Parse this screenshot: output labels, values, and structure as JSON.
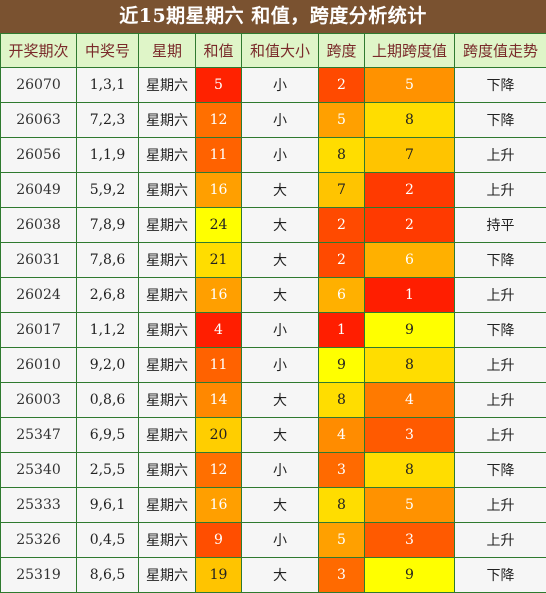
{
  "title": "近15期星期六 和值，跨度分析统计",
  "headers": [
    "开奖期次",
    "中奖号",
    "星期",
    "和值",
    "和值大小",
    "跨度",
    "上期跨度值",
    "跨度值走势"
  ],
  "colors": {
    "title_bg": "#7a5230",
    "header_bg": "#dff5c8",
    "border": "#2f7a2f",
    "heat_scale": {
      "1": "#ff2d00",
      "2": "#ff4a00",
      "3": "#ff6a00",
      "4": "#ff8c00",
      "5": "#ff9f00",
      "6": "#ffb000",
      "7": "#ffc400",
      "8": "#ffdd00",
      "9": "#ffff00"
    }
  },
  "rows": [
    {
      "issue": "26070",
      "numbers": "1,3,1",
      "weekday": "星期六",
      "sum": "5",
      "size": "小",
      "span": "2",
      "prev_span": "5",
      "trend": "下降",
      "sum_color": "#ff2200",
      "span_color": "#ff4a00",
      "prev_color": "#ff9200"
    },
    {
      "issue": "26063",
      "numbers": "7,2,3",
      "weekday": "星期六",
      "sum": "12",
      "size": "小",
      "span": "5",
      "prev_span": "8",
      "trend": "下降",
      "sum_color": "#ff6f00",
      "span_color": "#ffa000",
      "prev_color": "#ffdd00"
    },
    {
      "issue": "26056",
      "numbers": "1,1,9",
      "weekday": "星期六",
      "sum": "11",
      "size": "小",
      "span": "8",
      "prev_span": "7",
      "trend": "上升",
      "sum_color": "#ff6200",
      "span_color": "#ffdd00",
      "prev_color": "#ffc400"
    },
    {
      "issue": "26049",
      "numbers": "5,9,2",
      "weekday": "星期六",
      "sum": "16",
      "size": "大",
      "span": "7",
      "prev_span": "2",
      "trend": "上升",
      "sum_color": "#ff9f00",
      "span_color": "#ffc400",
      "prev_color": "#ff3a00"
    },
    {
      "issue": "26038",
      "numbers": "7,8,9",
      "weekday": "星期六",
      "sum": "24",
      "size": "大",
      "span": "2",
      "prev_span": "2",
      "trend": "持平",
      "sum_color": "#ffff00",
      "span_color": "#ff4a00",
      "prev_color": "#ff3a00"
    },
    {
      "issue": "26031",
      "numbers": "7,8,6",
      "weekday": "星期六",
      "sum": "21",
      "size": "大",
      "span": "2",
      "prev_span": "6",
      "trend": "下降",
      "sum_color": "#ffdd00",
      "span_color": "#ff4a00",
      "prev_color": "#ffb000"
    },
    {
      "issue": "26024",
      "numbers": "2,6,8",
      "weekday": "星期六",
      "sum": "16",
      "size": "大",
      "span": "6",
      "prev_span": "1",
      "trend": "上升",
      "sum_color": "#ff9f00",
      "span_color": "#ffb000",
      "prev_color": "#ff1e00"
    },
    {
      "issue": "26017",
      "numbers": "1,1,2",
      "weekday": "星期六",
      "sum": "4",
      "size": "小",
      "span": "1",
      "prev_span": "9",
      "trend": "下降",
      "sum_color": "#ff1e00",
      "span_color": "#ff1e00",
      "prev_color": "#ffff00"
    },
    {
      "issue": "26010",
      "numbers": "9,2,0",
      "weekday": "星期六",
      "sum": "11",
      "size": "小",
      "span": "9",
      "prev_span": "8",
      "trend": "上升",
      "sum_color": "#ff6200",
      "span_color": "#ffff00",
      "prev_color": "#ffdd00"
    },
    {
      "issue": "26003",
      "numbers": "0,8,6",
      "weekday": "星期六",
      "sum": "14",
      "size": "大",
      "span": "8",
      "prev_span": "4",
      "trend": "上升",
      "sum_color": "#ff8800",
      "span_color": "#ffdd00",
      "prev_color": "#ff7a00"
    },
    {
      "issue": "25347",
      "numbers": "6,9,5",
      "weekday": "星期六",
      "sum": "20",
      "size": "大",
      "span": "4",
      "prev_span": "3",
      "trend": "上升",
      "sum_color": "#ffce00",
      "span_color": "#ff8c00",
      "prev_color": "#ff5a00"
    },
    {
      "issue": "25340",
      "numbers": "2,5,5",
      "weekday": "星期六",
      "sum": "12",
      "size": "小",
      "span": "3",
      "prev_span": "8",
      "trend": "下降",
      "sum_color": "#ff6f00",
      "span_color": "#ff6a00",
      "prev_color": "#ffdd00"
    },
    {
      "issue": "25333",
      "numbers": "9,6,1",
      "weekday": "星期六",
      "sum": "16",
      "size": "大",
      "span": "8",
      "prev_span": "5",
      "trend": "上升",
      "sum_color": "#ff9f00",
      "span_color": "#ffdd00",
      "prev_color": "#ff9200"
    },
    {
      "issue": "25326",
      "numbers": "0,4,5",
      "weekday": "星期六",
      "sum": "9",
      "size": "小",
      "span": "5",
      "prev_span": "3",
      "trend": "上升",
      "sum_color": "#ff4e00",
      "span_color": "#ffa000",
      "prev_color": "#ff5a00"
    },
    {
      "issue": "25319",
      "numbers": "8,6,5",
      "weekday": "星期六",
      "sum": "19",
      "size": "大",
      "span": "3",
      "prev_span": "9",
      "trend": "下降",
      "sum_color": "#ffc400",
      "span_color": "#ff6a00",
      "prev_color": "#ffff00"
    }
  ]
}
